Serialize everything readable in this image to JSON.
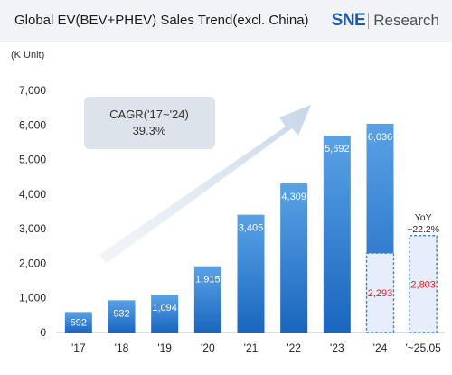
{
  "header": {
    "title": "Global EV(BEV+PHEV) Sales Trend(excl. China)",
    "brand_logo": "SNE",
    "brand_name": "Research"
  },
  "unit_label": "(K Unit)",
  "annotations": {
    "cagr_title": "CAGR('17~'24)",
    "cagr_value": "39.3%",
    "yoy_title": "YoY",
    "yoy_value": "+22.2%"
  },
  "colors": {
    "bar_top": "#5aa2e6",
    "bar_bottom": "#1a66bf",
    "partial_fill": "#e5eefa",
    "partial_border": "#3a7fd0",
    "partial_label": "#e02020",
    "value_label": "#ffffff",
    "callout_bg": "#dde3ea"
  },
  "chart_data": {
    "type": "bar",
    "title": "Global EV(BEV+PHEV) Sales Trend(excl. China)",
    "ylabel": "(K Unit)",
    "ylim": [
      0,
      7000
    ],
    "yticks": [
      0,
      1000,
      2000,
      3000,
      4000,
      5000,
      6000,
      7000
    ],
    "ytick_labels": [
      "0",
      "1,000",
      "2,000",
      "3,000",
      "4,000",
      "5,000",
      "6,000",
      "7,000"
    ],
    "categories": [
      "'17",
      "'18",
      "'19",
      "'20",
      "'21",
      "'22",
      "'23",
      "'24",
      "'~25.05"
    ],
    "series": [
      {
        "values": [
          592,
          932,
          1094,
          1915,
          3405,
          4309,
          5692,
          6036,
          null
        ],
        "labels": [
          "592",
          "932",
          "1,094",
          "1,915",
          "3,405",
          "4,309",
          "5,692",
          "6,036",
          ""
        ]
      },
      {
        "values": [
          null,
          null,
          null,
          null,
          null,
          null,
          null,
          2293,
          2803
        ],
        "labels": [
          "",
          "",
          "",
          "",
          "",
          "",
          "",
          "2,293",
          "2,803"
        ]
      }
    ],
    "grid": false,
    "legend": "none"
  }
}
